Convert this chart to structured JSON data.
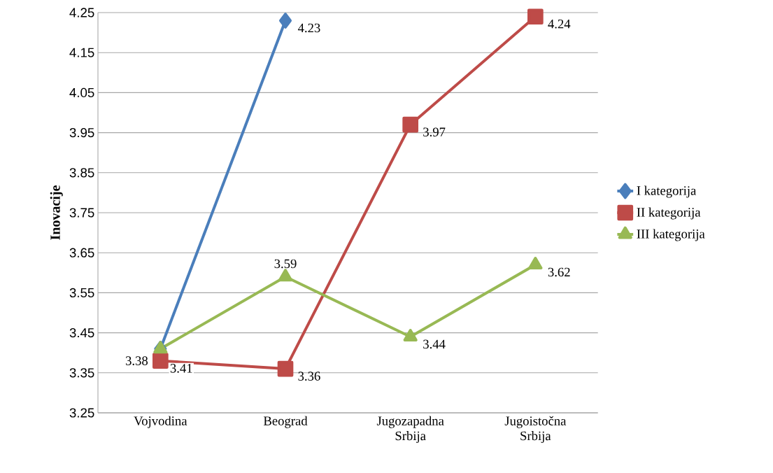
{
  "chart_data": {
    "type": "line",
    "ylabel": "Inovacije",
    "categories": [
      "Vojvodina",
      "Beograd",
      "Jugozapadna Srbija",
      "Jugoistočna Srbija"
    ],
    "series": [
      {
        "name": "I kategorija",
        "color": "#4a7ebb",
        "marker": "diamond",
        "values": [
          3.41,
          4.23,
          null,
          null
        ],
        "value_labels": [
          "3.41",
          "4.23",
          null,
          null
        ]
      },
      {
        "name": "II kategorija",
        "color": "#be4b48",
        "marker": "square",
        "values": [
          3.38,
          3.36,
          3.97,
          4.24
        ],
        "value_labels": [
          "3.38",
          "3.36",
          "3.97",
          "4.24"
        ]
      },
      {
        "name": "III kategorija",
        "color": "#98b954",
        "marker": "triangle",
        "values": [
          3.41,
          3.59,
          3.44,
          3.62
        ],
        "value_labels": [
          null,
          "3.59",
          "3.44",
          "3.62"
        ]
      }
    ],
    "ylim": [
      3.25,
      4.25
    ],
    "yticks": [
      3.25,
      3.35,
      3.45,
      3.55,
      3.65,
      3.75,
      3.85,
      3.95,
      4.05,
      4.15,
      4.25
    ],
    "grid": "y",
    "legend": "right"
  }
}
